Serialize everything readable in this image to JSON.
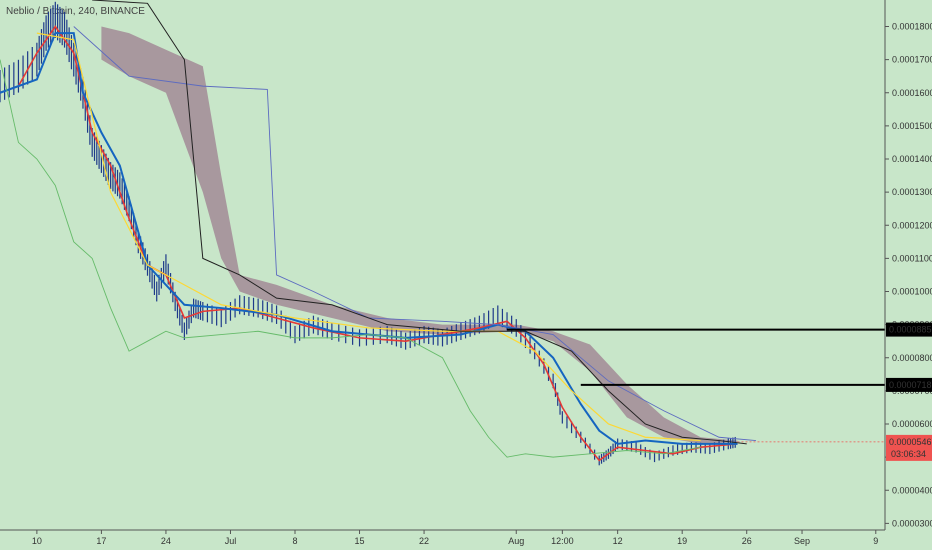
{
  "symbol": {
    "title": "Neblio / Bitcoin, 240, BINANCE"
  },
  "colors": {
    "background": "#c8e6c9",
    "price_badge": "#ef5350",
    "hline": "#000000",
    "candles": "#1e3a8a",
    "conversion_line": "#e53935",
    "base_line": "#1565c0",
    "cloud": "#9e7d8f",
    "lagging_span": "#66bb6a",
    "yellow_line": "#fdd835",
    "purple_line": "#5c6bc0",
    "black_line": "#212121"
  },
  "chart_data": {
    "type": "line",
    "title": "Neblio / Bitcoin, 240, BINANCE",
    "ylim": [
      2.8e-05,
      0.000188
    ],
    "y_ticks": [
      "0.0001800",
      "0.0001700",
      "0.0001600",
      "0.0001500",
      "0.0001400",
      "0.0001300",
      "0.0001200",
      "0.0001100",
      "0.0001000",
      "0.0000900",
      "0.0000800",
      "0.0000700",
      "0.0000600",
      "0.0000500",
      "0.0000400",
      "0.0000300"
    ],
    "x_ticks": [
      {
        "label": "10",
        "day": 0
      },
      {
        "label": "17",
        "day": 7
      },
      {
        "label": "24",
        "day": 14
      },
      {
        "label": "Jul",
        "day": 21
      },
      {
        "label": "8",
        "day": 28
      },
      {
        "label": "15",
        "day": 35
      },
      {
        "label": "22",
        "day": 42
      },
      {
        "label": "Aug",
        "day": 52
      },
      {
        "label": "12:00",
        "day": 57
      },
      {
        "label": "12",
        "day": 63
      },
      {
        "label": "19",
        "day": 70
      },
      {
        "label": "26",
        "day": 77
      },
      {
        "label": "Sep",
        "day": 83
      },
      {
        "label": "9",
        "day": 91
      }
    ],
    "xlim": [
      -4,
      92
    ],
    "series": [
      {
        "key": "price",
        "style": "candles",
        "points": [
          [
            -4,
            0.000162
          ],
          [
            -2,
            0.000165
          ],
          [
            0,
            0.00017
          ],
          [
            1,
            0.000178
          ],
          [
            2,
            0.000182
          ],
          [
            3,
            0.000179
          ],
          [
            4,
            0.00017
          ],
          [
            5,
            0.00016
          ],
          [
            6,
            0.000145
          ],
          [
            7,
            0.00014
          ],
          [
            8,
            0.000135
          ],
          [
            9,
            0.000132
          ],
          [
            10,
            0.000125
          ],
          [
            11,
            0.000115
          ],
          [
            12,
            0.000108
          ],
          [
            13,
            0.0001
          ],
          [
            14,
            0.000108
          ],
          [
            15,
            9.7e-05
          ],
          [
            16,
            8.8e-05
          ],
          [
            17,
            9.5e-05
          ],
          [
            18,
            9.4e-05
          ],
          [
            20,
            9.2e-05
          ],
          [
            22,
            9.6e-05
          ],
          [
            24,
            9.5e-05
          ],
          [
            26,
            9.3e-05
          ],
          [
            28,
            8.7e-05
          ],
          [
            30,
            9e-05
          ],
          [
            32,
            8.8e-05
          ],
          [
            35,
            8.6e-05
          ],
          [
            38,
            8.7e-05
          ],
          [
            40,
            8.5e-05
          ],
          [
            42,
            8.7e-05
          ],
          [
            44,
            8.6e-05
          ],
          [
            46,
            8.8e-05
          ],
          [
            48,
            9e-05
          ],
          [
            50,
            9.3e-05
          ],
          [
            52,
            8.9e-05
          ],
          [
            54,
            8.2e-05
          ],
          [
            56,
            7.3e-05
          ],
          [
            57,
            6.2e-05
          ],
          [
            59,
            5.6e-05
          ],
          [
            61,
            4.9e-05
          ],
          [
            62,
            5.1e-05
          ],
          [
            63,
            5.4e-05
          ],
          [
            65,
            5.3e-05
          ],
          [
            67,
            5e-05
          ],
          [
            69,
            5.2e-05
          ],
          [
            71,
            5.3e-05
          ],
          [
            73,
            5.25e-05
          ],
          [
            75,
            5.4e-05
          ],
          [
            76,
            5.46e-05
          ]
        ]
      },
      {
        "key": "conversion",
        "points": [
          [
            -4,
            0.00016
          ],
          [
            -2,
            0.000162
          ],
          [
            0,
            0.000172
          ],
          [
            2,
            0.00018
          ],
          [
            4,
            0.000172
          ],
          [
            6,
            0.000148
          ],
          [
            8,
            0.000138
          ],
          [
            10,
            0.000122
          ],
          [
            12,
            0.000108
          ],
          [
            14,
            0.000105
          ],
          [
            16,
            9.2e-05
          ],
          [
            18,
            9.4e-05
          ],
          [
            22,
            9.5e-05
          ],
          [
            26,
            9.2e-05
          ],
          [
            30,
            8.9e-05
          ],
          [
            35,
            8.6e-05
          ],
          [
            40,
            8.5e-05
          ],
          [
            44,
            8.7e-05
          ],
          [
            48,
            8.9e-05
          ],
          [
            51,
            9.1e-05
          ],
          [
            53,
            8.6e-05
          ],
          [
            55,
            7.8e-05
          ],
          [
            57,
            6.5e-05
          ],
          [
            59,
            5.6e-05
          ],
          [
            61,
            4.9e-05
          ],
          [
            63,
            5.3e-05
          ],
          [
            66,
            5.2e-05
          ],
          [
            69,
            5.1e-05
          ],
          [
            72,
            5.3e-05
          ],
          [
            76,
            5.4e-05
          ]
        ]
      },
      {
        "key": "base",
        "points": [
          [
            -4,
            0.00016
          ],
          [
            0,
            0.000164
          ],
          [
            2,
            0.000178
          ],
          [
            4,
            0.000178
          ],
          [
            5,
            0.00016
          ],
          [
            7,
            0.000148
          ],
          [
            9,
            0.000138
          ],
          [
            12,
            0.000108
          ],
          [
            16,
            9.6e-05
          ],
          [
            20,
            9.5e-05
          ],
          [
            26,
            9.3e-05
          ],
          [
            32,
            8.8e-05
          ],
          [
            40,
            8.6e-05
          ],
          [
            46,
            8.7e-05
          ],
          [
            50,
            9e-05
          ],
          [
            53,
            8.8e-05
          ],
          [
            56,
            8e-05
          ],
          [
            59,
            6.6e-05
          ],
          [
            61,
            5.8e-05
          ],
          [
            63,
            5.4e-05
          ],
          [
            66,
            5.5e-05
          ],
          [
            70,
            5.4e-05
          ],
          [
            76,
            5.4e-05
          ]
        ]
      },
      {
        "key": "lagging",
        "points": [
          [
            -4,
            0.00017
          ],
          [
            -2,
            0.000145
          ],
          [
            0,
            0.00014
          ],
          [
            2,
            0.000132
          ],
          [
            4,
            0.000115
          ],
          [
            6,
            0.00011
          ],
          [
            8,
            9.5e-05
          ],
          [
            10,
            8.2e-05
          ],
          [
            12,
            8.5e-05
          ],
          [
            14,
            8.8e-05
          ],
          [
            16,
            8.6e-05
          ],
          [
            20,
            8.7e-05
          ],
          [
            24,
            8.8e-05
          ],
          [
            28,
            8.6e-05
          ],
          [
            32,
            8.6e-05
          ],
          [
            36,
            8.7e-05
          ],
          [
            40,
            8.6e-05
          ],
          [
            44,
            8e-05
          ],
          [
            47,
            6.4e-05
          ],
          [
            49,
            5.6e-05
          ],
          [
            51,
            5e-05
          ],
          [
            53,
            5.1e-05
          ],
          [
            56,
            5e-05
          ],
          [
            60,
            5.1e-05
          ],
          [
            64,
            5.2e-05
          ],
          [
            68,
            5.1e-05
          ],
          [
            72,
            5.3e-05
          ]
        ]
      },
      {
        "key": "yellow",
        "points": [
          [
            0,
            0.000178
          ],
          [
            4,
            0.000176
          ],
          [
            8,
            0.00013
          ],
          [
            12,
            0.000108
          ],
          [
            16,
            0.000102
          ],
          [
            20,
            9.6e-05
          ],
          [
            28,
            9.2e-05
          ],
          [
            36,
            8.9e-05
          ],
          [
            44,
            8.8e-05
          ],
          [
            50,
            8.8e-05
          ],
          [
            54,
            8.2e-05
          ],
          [
            58,
            7e-05
          ],
          [
            62,
            6e-05
          ],
          [
            66,
            5.6e-05
          ],
          [
            72,
            5.5e-05
          ]
        ]
      },
      {
        "key": "purple",
        "points": [
          [
            4,
            0.00018
          ],
          [
            10,
            0.000165
          ],
          [
            18,
            0.000162
          ],
          [
            25,
            0.000161
          ],
          [
            26,
            0.000105
          ],
          [
            30,
            0.0001
          ],
          [
            36,
            9.2e-05
          ],
          [
            44,
            9.1e-05
          ],
          [
            50,
            9e-05
          ],
          [
            56,
            8.7e-05
          ],
          [
            62,
            7.3e-05
          ],
          [
            68,
            6.4e-05
          ],
          [
            74,
            5.6e-05
          ],
          [
            78,
            5.5e-05
          ]
        ]
      },
      {
        "key": "black",
        "points": [
          [
            6,
            0.000188
          ],
          [
            12,
            0.000187
          ],
          [
            16,
            0.00017
          ],
          [
            18,
            0.00011
          ],
          [
            22,
            0.000105
          ],
          [
            26,
            9.8e-05
          ],
          [
            32,
            9.6e-05
          ],
          [
            38,
            9e-05
          ],
          [
            46,
            8.8e-05
          ],
          [
            53,
            8.8e-05
          ],
          [
            58,
            8.2e-05
          ],
          [
            62,
            7e-05
          ],
          [
            66,
            6e-05
          ],
          [
            70,
            5.6e-05
          ],
          [
            74,
            5.5e-05
          ],
          [
            77,
            5.4e-05
          ]
        ]
      }
    ],
    "cloud": [
      [
        7,
        0.00017,
        0.00018
      ],
      [
        10,
        0.000165,
        0.000178
      ],
      [
        14,
        0.00016,
        0.000173
      ],
      [
        18,
        0.00013,
        0.000168
      ],
      [
        20,
        0.00011,
        0.000135
      ],
      [
        22,
        0.0001,
        0.000105
      ],
      [
        26,
        9.6e-05,
        0.000102
      ],
      [
        32,
        9.2e-05,
        9.6e-05
      ],
      [
        38,
        8.8e-05,
        9.2e-05
      ],
      [
        44,
        8.7e-05,
        9e-05
      ],
      [
        52,
        8.8e-05,
        9e-05
      ],
      [
        56,
        8.5e-05,
        8.8e-05
      ],
      [
        60,
        7.6e-05,
        8.4e-05
      ],
      [
        64,
        6.2e-05,
        7.2e-05
      ],
      [
        68,
        5.6e-05,
        6.2e-05
      ],
      [
        72,
        5.4e-05,
        5.6e-05
      ],
      [
        76,
        5.45e-05,
        5.5e-05
      ]
    ],
    "horizontal_lines": [
      {
        "value": 8.85e-05,
        "start_day": 51,
        "label": "0.0000885"
      },
      {
        "value": 7.18e-05,
        "start_day": 59,
        "label": "0.0000718"
      }
    ],
    "current_price": {
      "value": 5.46e-05,
      "label": "0.0000546",
      "countdown": "03:06:34"
    }
  }
}
